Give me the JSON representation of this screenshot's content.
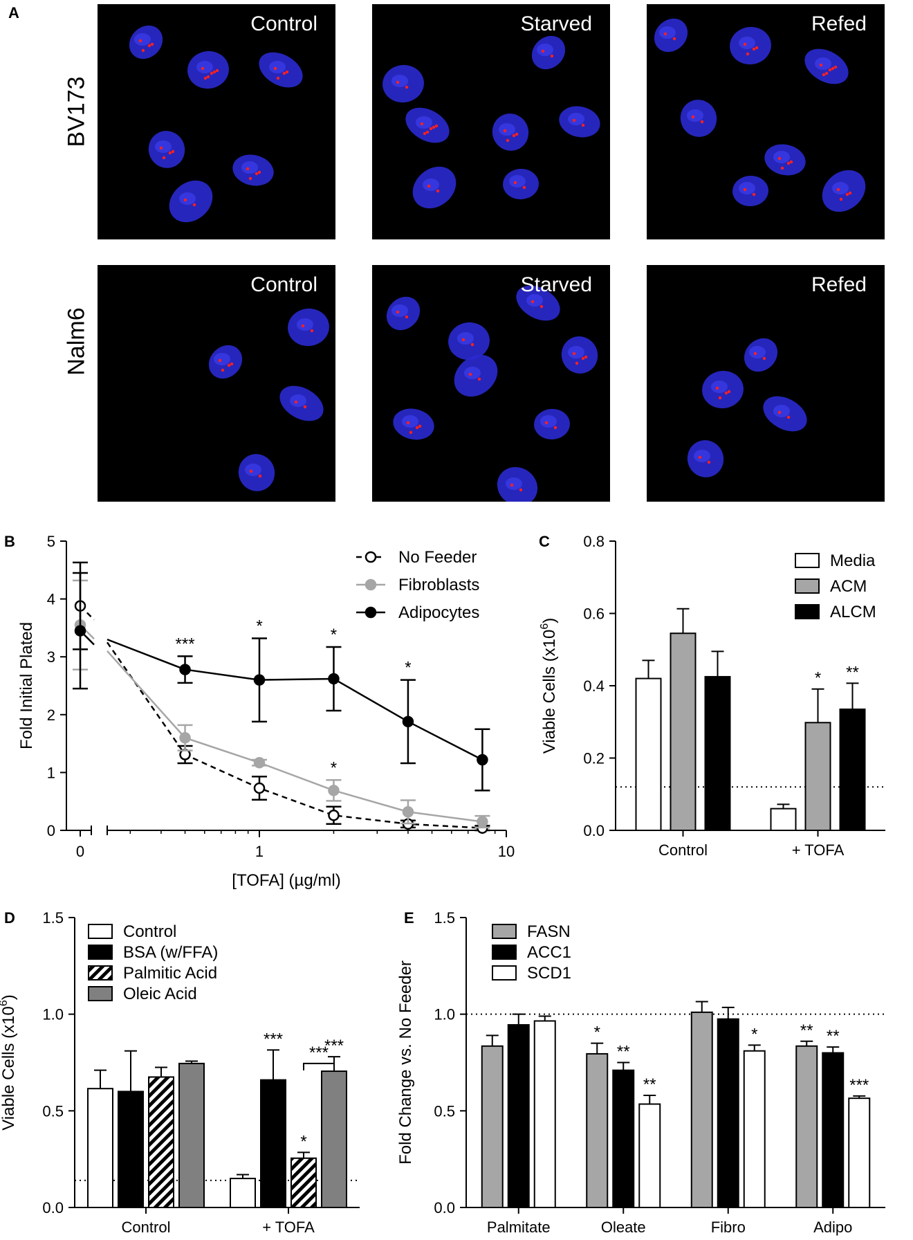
{
  "panel_a": {
    "label": "A",
    "rows": [
      {
        "name": "BV173",
        "conditions": [
          "Control",
          "Starved",
          "Refed"
        ]
      },
      {
        "name": "Nalm6",
        "conditions": [
          "Control",
          "Starved",
          "Refed"
        ]
      }
    ],
    "colors": {
      "background": "#000000",
      "nuclei": "#2a2ad0",
      "lipid": "#ff2020"
    }
  },
  "chart_data": [
    {
      "panel": "B",
      "type": "line",
      "ylabel": "Fold Initial Plated",
      "xlabel": "[TOFA] (µg/ml)",
      "x_scale": "log with zero segment",
      "x_ticks": [
        "0",
        "1",
        "10"
      ],
      "ylim": [
        0,
        5
      ],
      "y_ticks": [
        "0",
        "1",
        "2",
        "3",
        "4",
        "5"
      ],
      "legend_position": "top-right",
      "series": [
        {
          "name": "No Feeder",
          "style": "dashed",
          "marker": "open-circle",
          "color": "#000000",
          "x": [
            0,
            0.5,
            1,
            2,
            4,
            8
          ],
          "y": [
            3.88,
            1.31,
            0.73,
            0.26,
            0.11,
            0.04
          ],
          "err": [
            0.75,
            0.15,
            0.2,
            0.15,
            0.06,
            0.04
          ]
        },
        {
          "name": "Fibroblasts",
          "style": "solid",
          "marker": "filled-circle",
          "color": "#a6a6a6",
          "x": [
            0,
            0.5,
            1,
            2,
            4,
            8
          ],
          "y": [
            3.55,
            1.6,
            1.17,
            0.69,
            0.32,
            0.15
          ],
          "err": [
            0.77,
            0.22,
            0.05,
            0.18,
            0.2,
            0.1
          ]
        },
        {
          "name": "Adipocytes",
          "style": "solid",
          "marker": "filled-circle",
          "color": "#000000",
          "x": [
            0,
            0.5,
            1,
            2,
            4,
            8
          ],
          "y": [
            3.45,
            2.78,
            2.6,
            2.62,
            1.88,
            1.22
          ],
          "err": [
            1.0,
            0.23,
            0.72,
            0.55,
            0.72,
            0.53
          ]
        }
      ],
      "annotations": [
        {
          "x": 0.5,
          "text": "***"
        },
        {
          "x": 1,
          "text": "*"
        },
        {
          "x": 2,
          "text": "*"
        },
        {
          "x": 4,
          "text": "*"
        },
        {
          "x": 2,
          "text": "*",
          "series": "Fibroblasts"
        }
      ]
    },
    {
      "panel": "C",
      "type": "bar",
      "ylabel": "Viable Cells  (x10",
      "ylabel_sup": "6",
      "ylim": [
        0,
        0.8
      ],
      "y_ticks": [
        "0.0",
        "0.2",
        "0.4",
        "0.6",
        "0.8"
      ],
      "categories": [
        "Control",
        "+ TOFA"
      ],
      "legend_position": "top-right",
      "reference_line": 0.12,
      "series": [
        {
          "name": "Media",
          "fill": "#ffffff",
          "values": [
            0.42,
            0.06
          ],
          "err": [
            0.05,
            0.012
          ],
          "sig": [
            "",
            ""
          ]
        },
        {
          "name": "ACM",
          "fill": "#a6a6a6",
          "values": [
            0.545,
            0.298
          ],
          "err": [
            0.068,
            0.093
          ],
          "sig": [
            "",
            "*"
          ]
        },
        {
          "name": "ALCM",
          "fill": "#000000",
          "values": [
            0.425,
            0.335
          ],
          "err": [
            0.07,
            0.072
          ],
          "sig": [
            "",
            "**"
          ]
        }
      ]
    },
    {
      "panel": "D",
      "type": "bar",
      "ylabel": "Viable Cells  (x10",
      "ylabel_sup": "6",
      "ylim": [
        0,
        1.5
      ],
      "y_ticks": [
        "0.0",
        "0.5",
        "1.0",
        "1.5"
      ],
      "categories": [
        "Control",
        "+ TOFA"
      ],
      "legend_position": "top-left",
      "reference_line": 0.14,
      "series": [
        {
          "name": "Control",
          "fill": "#ffffff",
          "values": [
            0.615,
            0.15
          ],
          "err": [
            0.095,
            0.02
          ],
          "sig": [
            "",
            ""
          ]
        },
        {
          "name": "BSA (w/FFA)",
          "fill": "#000000",
          "values": [
            0.6,
            0.66
          ],
          "err": [
            0.21,
            0.155
          ],
          "sig": [
            "",
            "***"
          ]
        },
        {
          "name": "Palmitic Acid",
          "fill": "hatch",
          "values": [
            0.675,
            0.255
          ],
          "err": [
            0.05,
            0.03
          ],
          "sig": [
            "",
            "*"
          ]
        },
        {
          "name": "Oleic Acid",
          "fill": "#808080",
          "values": [
            0.745,
            0.705
          ],
          "err": [
            0.012,
            0.075
          ],
          "sig": [
            "",
            "***"
          ]
        }
      ],
      "bracket": {
        "text": "***"
      }
    },
    {
      "panel": "E",
      "type": "bar",
      "ylabel": "Fold Change vs. No Feeder",
      "ylim": [
        0,
        1.5
      ],
      "y_ticks": [
        "0.0",
        "0.5",
        "1.0",
        "1.5"
      ],
      "categories": [
        "Palmitate",
        "Oleate",
        "Fibro",
        "Adipo"
      ],
      "legend_position": "top-left",
      "reference_line": 1.0,
      "series": [
        {
          "name": "FASN",
          "fill": "#a6a6a6",
          "values": [
            0.835,
            0.795,
            1.01,
            0.835
          ],
          "err": [
            0.055,
            0.055,
            0.055,
            0.025
          ],
          "sig": [
            "",
            "*",
            "",
            "**"
          ]
        },
        {
          "name": "ACC1",
          "fill": "#000000",
          "values": [
            0.945,
            0.71,
            0.975,
            0.8
          ],
          "err": [
            0.055,
            0.04,
            0.06,
            0.03
          ],
          "sig": [
            "",
            "**",
            "",
            "**"
          ]
        },
        {
          "name": "SCD1",
          "fill": "#ffffff",
          "values": [
            0.965,
            0.535,
            0.81,
            0.565
          ],
          "err": [
            0.025,
            0.045,
            0.03,
            0.012
          ],
          "sig": [
            "",
            "**",
            "*",
            "***"
          ]
        }
      ]
    }
  ]
}
